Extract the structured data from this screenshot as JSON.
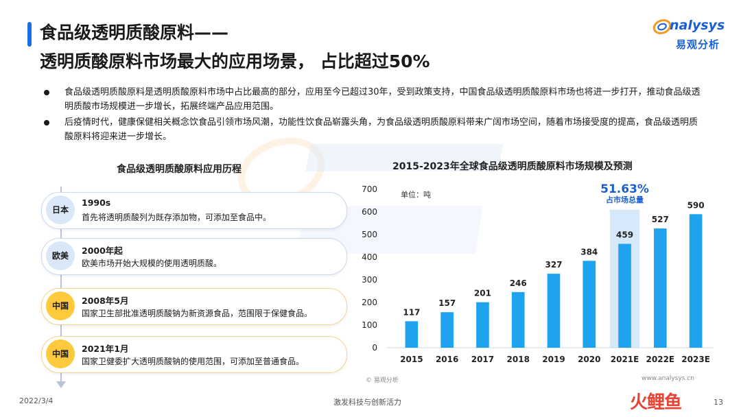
{
  "header": {
    "title_line1": "食品级透明质酸原料——",
    "title_line2": "透明质酸原料市场最大的应用场景， 占比超过50%",
    "logo_word": "nalysys",
    "logo_cn": "易观分析"
  },
  "bullets": [
    "食品级透明质酸原料是透明质酸原料市场中占比最高的部分，应用至今已超过30年，受到政策支持，中国食品级透明质酸原料市场也将进一步打开，推动食品级透明质酸市场规模进一步增长，拓展终端产品应用范围。",
    "后疫情时代，健康保健相关概念饮食品引领市场风潮，功能性饮食品崭露头角，为食品级透明质酸原料带来广阔市场空间，随着市场接受度的提高，食品级透明质酸原料将迎来进一步增长。"
  ],
  "history": {
    "title": "食品级透明质酸原料应用历程",
    "items": [
      {
        "region": "日本",
        "when": "1990s",
        "what": "首先将透明质酸列为既存添加物，可添加至食品中。",
        "style": "blue"
      },
      {
        "region": "欧美",
        "when": "2000年起",
        "what": "欧美市场开始大规模的使用透明质酸。",
        "style": "blue"
      },
      {
        "region": "中国",
        "when": "2008年5月",
        "what": "国家卫生部批准透明质酸钠为新资源食品，范围限于保健食品。",
        "style": "gold"
      },
      {
        "region": "中国",
        "when": "2021年1月",
        "what": "国家卫健委扩大透明质酸钠的使用范围，可添加至普通食品。",
        "style": "gold"
      }
    ]
  },
  "chart_data": {
    "type": "bar",
    "title": "2015-2023年全球食品级透明质酸原料市场规模及预测",
    "unit_label": "单位：吨",
    "categories": [
      "2015",
      "2016",
      "2017",
      "2018",
      "2019",
      "2020",
      "2021E",
      "2022E",
      "2023E"
    ],
    "values": [
      117,
      157,
      201,
      246,
      327,
      384,
      459,
      527,
      590
    ],
    "ylim": [
      0,
      700
    ],
    "yticks": [
      0,
      100,
      200,
      300,
      400,
      500,
      600,
      700
    ],
    "grid": false,
    "bar_color": "#1fa3ef",
    "highlight": {
      "category": "2021E",
      "value_text": "51.63%",
      "label": "占市场总量",
      "color": "#1a5fd0",
      "band_color": "#d6e9fb"
    }
  },
  "footer": {
    "source": "© 易观分析",
    "site": "www.analysys.cn",
    "date": "2022/3/4",
    "slogan": "激发科技与创新活力",
    "page": "13",
    "brand": "火鲤鱼"
  }
}
